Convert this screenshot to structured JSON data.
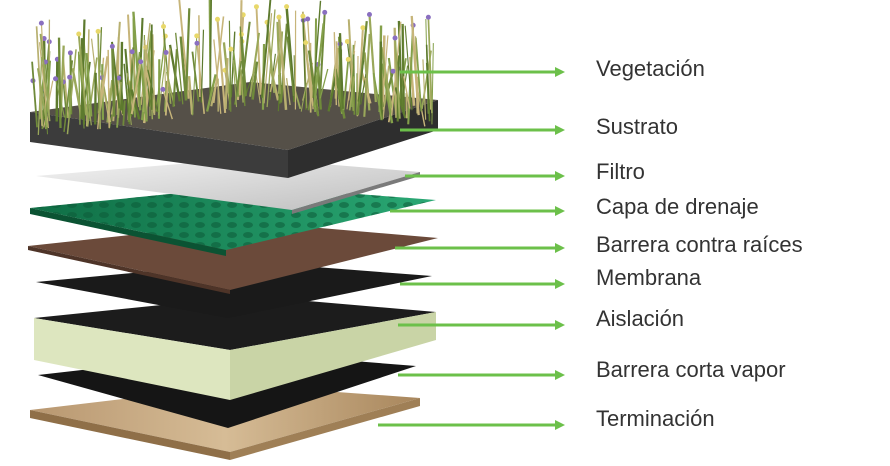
{
  "layers": [
    {
      "label": "Vegetación"
    },
    {
      "label": "Sustrato"
    },
    {
      "label": "Filtro"
    },
    {
      "label": "Capa de drenaje"
    },
    {
      "label": "Barrera contra raíces"
    },
    {
      "label": "Membrana"
    },
    {
      "label": "Aislación"
    },
    {
      "label": "Barrera corta vapor"
    },
    {
      "label": "Terminación"
    }
  ],
  "colors": {
    "arrow": "#6cc04a",
    "text": "#333333",
    "vegetation": "#8aa04a",
    "soil": "#3c3c3c",
    "filter": "#d9d9d9",
    "drainage": "#1a8a5a",
    "root_barrier": "#6b4a3a",
    "membrane": "#1a1a1a",
    "insulation": "#dde6bf",
    "vapor_barrier": "#151515",
    "finish": "#c8aa82"
  }
}
